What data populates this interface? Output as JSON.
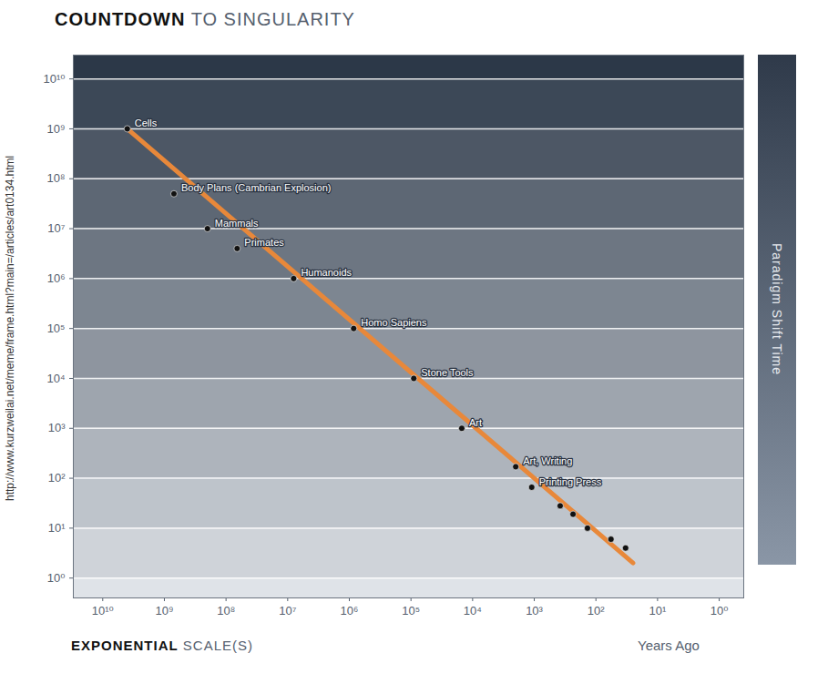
{
  "chart_data": {
    "type": "scatter",
    "title": "COUNTDOWN TO SINGULARITY",
    "source": "http://www.kurzweilai.net/meme/frame.html?main=/articles/art0134.html",
    "annotations": [
      "EXPONENTIAL SCALE(S)"
    ],
    "x_label": "Years Ago",
    "y_label": "Paradigm Shift Time",
    "log": true,
    "grid": true,
    "color": "#111111",
    "x": [
      4000000000,
      700000000,
      200000000,
      66000000,
      8000000,
      850000,
      90000,
      15000,
      2000,
      1100,
      380,
      235,
      137,
      57,
      33
    ],
    "values": [
      1000000000,
      50000000,
      10000000,
      4000000,
      1000000,
      100000,
      10000,
      1000,
      170,
      66,
      28,
      19,
      10,
      6,
      4
    ],
    "labels": [
      "Cells",
      "Body Plans (Cambrian Explosion)",
      "Mammals",
      "Primates",
      "Humanoids",
      "Homo Sapiens",
      "Stone Tools",
      "Art",
      "Art, Writing",
      "Printing Press",
      null,
      null,
      null,
      null,
      null
    ],
    "trend": {
      "x": [
        4000000000,
        25
      ],
      "values": [
        1000000000,
        2
      ],
      "color": "#e8883a"
    },
    "xlim": [
      30000000000,
      0.4
    ],
    "ylim": [
      0.4,
      30000000000
    ],
    "xticks": [
      {
        "value": 10000000000,
        "label": "10¹⁰"
      },
      {
        "value": 1000000000,
        "label": "10⁹"
      },
      {
        "value": 100000000,
        "label": "10⁸"
      },
      {
        "value": 10000000,
        "label": "10⁷"
      },
      {
        "value": 1000000,
        "label": "10⁶"
      },
      {
        "value": 100000,
        "label": "10⁵"
      },
      {
        "value": 10000,
        "label": "10⁴"
      },
      {
        "value": 1000,
        "label": "10³"
      },
      {
        "value": 100,
        "label": "10²"
      },
      {
        "value": 10,
        "label": "10¹"
      },
      {
        "value": 1,
        "label": "10⁰"
      }
    ],
    "yticks": [
      {
        "value": 1,
        "label": "10⁰"
      },
      {
        "value": 10,
        "label": "10¹"
      },
      {
        "value": 100,
        "label": "10²"
      },
      {
        "value": 1000,
        "label": "10³"
      },
      {
        "value": 10000,
        "label": "10⁴"
      },
      {
        "value": 100000,
        "label": "10⁵"
      },
      {
        "value": 1000000,
        "label": "10⁶"
      },
      {
        "value": 10000000,
        "label": "10⁷"
      },
      {
        "value": 100000000,
        "label": "10⁸"
      },
      {
        "value": 1000000000,
        "label": "10⁹"
      },
      {
        "value": 10000000000,
        "label": "10¹⁰"
      }
    ]
  }
}
